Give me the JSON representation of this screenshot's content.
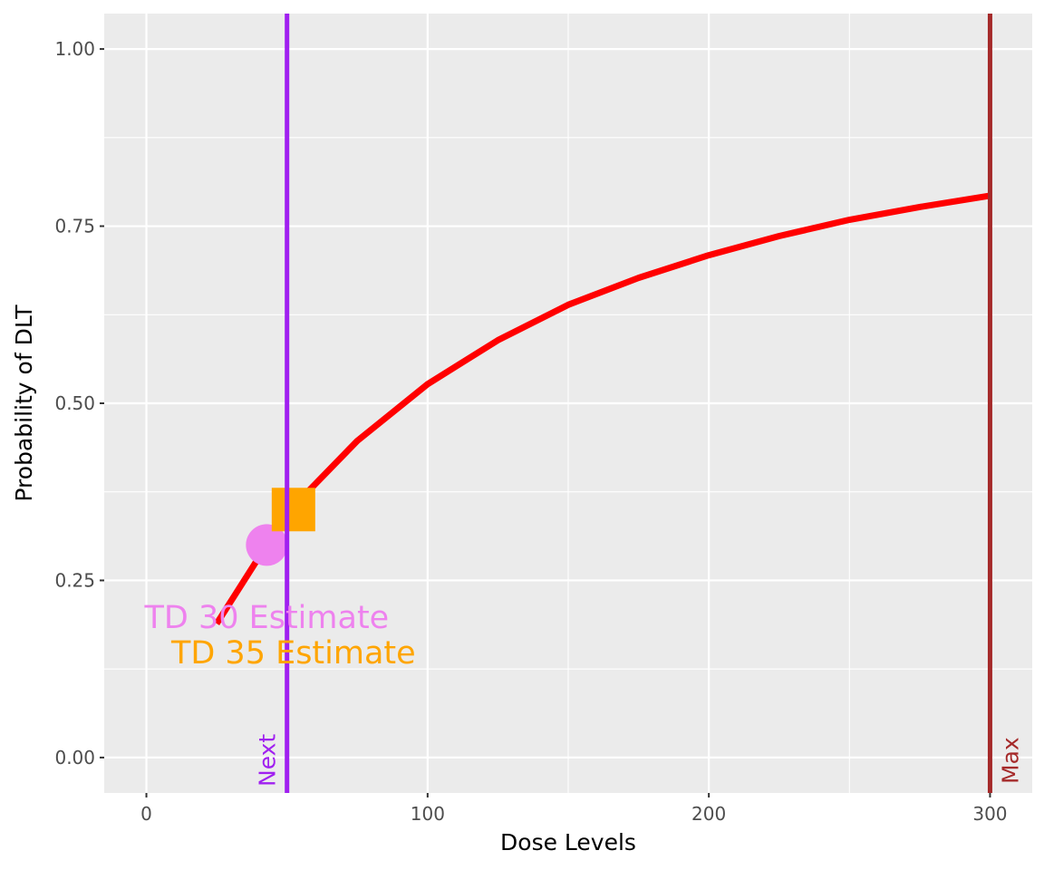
{
  "chart_data": {
    "type": "line",
    "xlabel": "Dose Levels",
    "ylabel": "Probability of DLT",
    "xlim": [
      -15,
      315
    ],
    "ylim": [
      -0.05,
      1.05
    ],
    "x_ticks": [
      0,
      100,
      200,
      300
    ],
    "x_tick_labels": [
      "0",
      "100",
      "200",
      "300"
    ],
    "y_ticks": [
      0,
      0.25,
      0.5,
      0.75,
      1.0
    ],
    "y_tick_labels": [
      "0.00",
      "0.25",
      "0.50",
      "0.75",
      "1.00"
    ],
    "grid": true,
    "series": [
      {
        "name": "Probability of DLT",
        "color": "#ff0000",
        "x": [
          25,
          50,
          75,
          100,
          125,
          150,
          175,
          200,
          225,
          250,
          275,
          300
        ],
        "y": [
          0.189,
          0.345,
          0.447,
          0.527,
          0.589,
          0.639,
          0.677,
          0.709,
          0.736,
          0.759,
          0.777,
          0.793
        ]
      }
    ],
    "markers": [
      {
        "name": "TD 30",
        "shape": "circle",
        "x": 42.8,
        "y": 0.3,
        "color": "#ee82ee",
        "label": "TD 30 Estimate",
        "label_x": 42.8,
        "label_y": 0.198
      },
      {
        "name": "TD 35",
        "shape": "square",
        "x": 52.3,
        "y": 0.35,
        "color": "#ffa500",
        "label": "TD 35 Estimate",
        "label_x": 52.3,
        "label_y": 0.148
      }
    ],
    "vlines": [
      {
        "x": 50,
        "color": "#a020f0",
        "label": "Next"
      },
      {
        "x": 300,
        "color": "#a52a2a",
        "label": "Max"
      }
    ]
  }
}
